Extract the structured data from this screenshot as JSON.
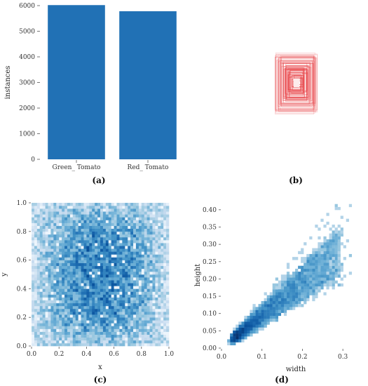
{
  "chart_data": [
    {
      "id": "a",
      "type": "bar",
      "panel_label": "(a)",
      "categories": [
        "Green_ Tomato",
        "Red_ Tomato"
      ],
      "values": [
        6020,
        5780
      ],
      "xlabel": "",
      "ylabel": "instances",
      "ylim": [
        0,
        6000
      ],
      "yticks": [
        0,
        1000,
        2000,
        3000,
        4000,
        5000,
        6000
      ],
      "bar_color": "#2171b5",
      "grid": false
    },
    {
      "id": "b",
      "type": "other",
      "panel_label": "(b)",
      "description_kind": "overlaid bounding boxes (labels correlogram)",
      "box_color": "#e8474b"
    },
    {
      "id": "c",
      "type": "heatmap",
      "panel_label": "(c)",
      "xlabel": "x",
      "ylabel": "y",
      "xlim": [
        0,
        1
      ],
      "ylim": [
        0,
        1
      ],
      "xticks": [
        "0.0",
        "0.2",
        "0.4",
        "0.6",
        "0.8",
        "1.0"
      ],
      "yticks": [
        "0.0",
        "0.2",
        "0.4",
        "0.6",
        "0.8",
        "1.0"
      ],
      "bins": 50,
      "colormap": "Blues"
    },
    {
      "id": "d",
      "type": "heatmap",
      "panel_label": "(d)",
      "xlabel": "width",
      "ylabel": "height",
      "xlim": [
        0,
        0.35
      ],
      "ylim": [
        0,
        0.42
      ],
      "xticks": [
        "0.0",
        "0.1",
        "0.2",
        "0.3"
      ],
      "yticks": [
        "0.00",
        "0.05",
        "0.10",
        "0.15",
        "0.20",
        "0.25",
        "0.30",
        "0.35",
        "0.40"
      ],
      "relation": "height ≈ width",
      "colormap": "Blues"
    }
  ]
}
